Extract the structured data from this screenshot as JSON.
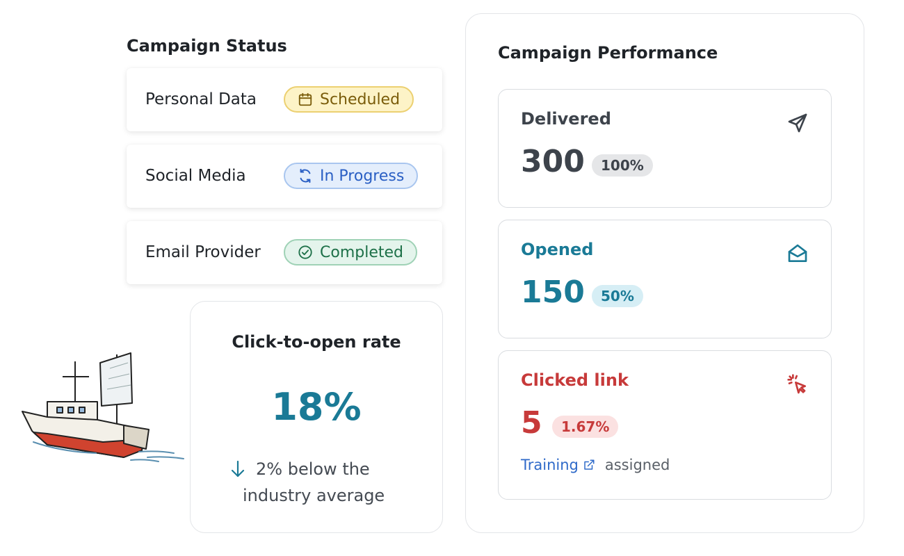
{
  "campaign_status": {
    "title": "Campaign Status",
    "items": [
      {
        "name": "Personal Data",
        "status": "Scheduled",
        "icon": "calendar-icon"
      },
      {
        "name": "Social Media",
        "status": "In Progress",
        "icon": "refresh-icon"
      },
      {
        "name": "Email Provider",
        "status": "Completed",
        "icon": "check-circle-icon"
      }
    ]
  },
  "click_to_open": {
    "title": "Click-to-open rate",
    "value": "18%",
    "note_line1": "2% below the",
    "note_line2": "industry average",
    "icon": "arrow-down-icon"
  },
  "performance": {
    "title": "Campaign Performance",
    "delivered": {
      "label": "Delivered",
      "value": "300",
      "badge": "100%",
      "icon": "send-icon"
    },
    "opened": {
      "label": "Opened",
      "value": "150",
      "badge": "50%",
      "icon": "envelope-open-icon"
    },
    "clicked": {
      "label": "Clicked link",
      "value": "5",
      "badge": "1.67%",
      "icon": "cursor-click-icon",
      "link_text": "Training",
      "suffix": "assigned"
    }
  },
  "colors": {
    "teal": "#1a7a96",
    "red": "#c73a3a",
    "gray": "#3d434b",
    "scheduled": "#fdf3c7",
    "in_progress": "#e4eefc",
    "completed": "#e4f4ec"
  }
}
